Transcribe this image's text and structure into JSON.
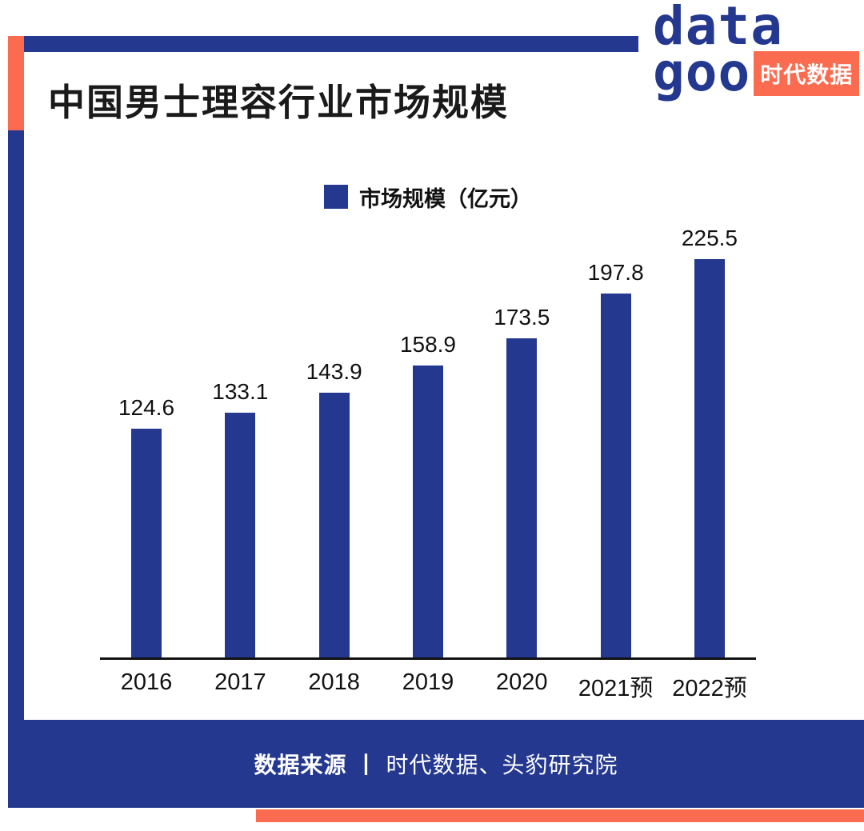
{
  "title": "中国男士理容行业市场规模",
  "logo": {
    "row1": "data",
    "row2": "goo",
    "badge": "时代数据"
  },
  "legend": {
    "label": "市场规模（亿元）"
  },
  "footer": {
    "source_label": "数据来源",
    "divider": "丨",
    "source_text": "时代数据、头豹研究院"
  },
  "colors": {
    "navy": "#24388F",
    "coral": "#FA6B4F"
  },
  "chart_data": {
    "type": "bar",
    "title": "中国男士理容行业市场规模",
    "legend": "市场规模（亿元）",
    "categories": [
      "2016",
      "2017",
      "2018",
      "2019",
      "2020",
      "2021预",
      "2022预"
    ],
    "values": [
      124.6,
      133.1,
      143.9,
      158.9,
      173.5,
      197.8,
      225.5
    ],
    "unit": "亿元",
    "ylim": [
      0,
      235
    ],
    "grid": false,
    "legend_position": "top",
    "bar_color": "#24388F"
  }
}
